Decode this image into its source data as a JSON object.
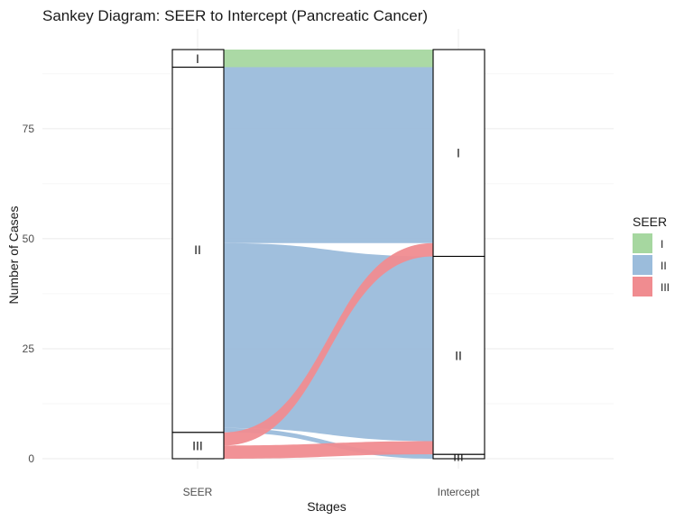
{
  "chart_data": {
    "type": "sankey",
    "title": "Sankey Diagram: SEER to Intercept (Pancreatic Cancer)",
    "xlabel": "Stages",
    "ylabel": "Number of Cases",
    "axes": [
      "SEER",
      "Intercept"
    ],
    "ylim": [
      0,
      93
    ],
    "yticks": [
      0,
      25,
      50,
      75
    ],
    "grid": true,
    "legend": {
      "title": "SEER",
      "position": "right",
      "items": [
        {
          "label": "I",
          "color": "#a6d7a0"
        },
        {
          "label": "II",
          "color": "#9bbcdb"
        },
        {
          "label": "III",
          "color": "#f08c90"
        }
      ]
    },
    "strata": {
      "SEER": [
        {
          "label": "I",
          "value": 4
        },
        {
          "label": "II",
          "value": 83
        },
        {
          "label": "III",
          "value": 6
        }
      ],
      "Intercept": [
        {
          "label": "I",
          "value": 47
        },
        {
          "label": "II",
          "value": 45
        },
        {
          "label": "III",
          "value": 1
        }
      ]
    },
    "flows": [
      {
        "from": "I",
        "to": "I",
        "value": 4
      },
      {
        "from": "II",
        "to": "I",
        "value": 40
      },
      {
        "from": "II",
        "to": "II",
        "value": 42
      },
      {
        "from": "II",
        "to": "III",
        "value": 1
      },
      {
        "from": "III",
        "to": "I",
        "value": 3
      },
      {
        "from": "III",
        "to": "II",
        "value": 3
      }
    ]
  }
}
